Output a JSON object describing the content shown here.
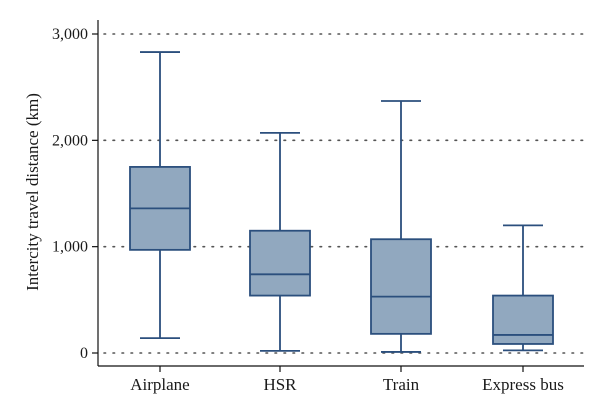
{
  "chart_data": {
    "type": "box",
    "title": "",
    "xlabel": "",
    "ylabel": "Intercity travel distance (km)",
    "ylim": [
      0,
      3000
    ],
    "yticks": [
      0,
      1000,
      2000,
      3000
    ],
    "ytick_labels": [
      "0",
      "1,000",
      "2,000",
      "3,000"
    ],
    "grid": "horizontal dotted",
    "colors": {
      "box_fill": "#91a8bf",
      "box_stroke": "#2b4f7d"
    },
    "categories": [
      "Airplane",
      "HSR",
      "Train",
      "Express bus"
    ],
    "boxes": [
      {
        "category": "Airplane",
        "min": 140,
        "q1": 970,
        "median": 1360,
        "q3": 1750,
        "max": 2830
      },
      {
        "category": "HSR",
        "min": 20,
        "q1": 540,
        "median": 740,
        "q3": 1150,
        "max": 2070
      },
      {
        "category": "Train",
        "min": 10,
        "q1": 180,
        "median": 530,
        "q3": 1070,
        "max": 2370
      },
      {
        "category": "Express bus",
        "min": 25,
        "q1": 85,
        "median": 170,
        "q3": 540,
        "max": 1200
      }
    ]
  }
}
